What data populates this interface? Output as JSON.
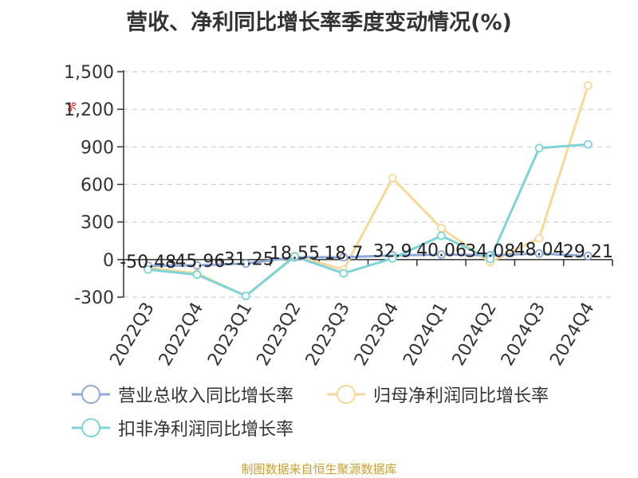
{
  "title": "营收、净利同比增长率季度变动情况(%)",
  "source": "制图数据来自恒生聚源数据库",
  "unit_label": "%",
  "colors": {
    "revenue": "#8ea9d8",
    "net_profit": "#f8d89a",
    "deducted_net_profit": "#7fd3d6"
  },
  "chart_data": {
    "type": "line",
    "title": "营收、净利同比增长率季度变动情况(%)",
    "ylabel": "%",
    "xlabel": "",
    "ylim": [
      -300,
      1500
    ],
    "yticks": [
      -300,
      0,
      300,
      600,
      900,
      1200,
      1500
    ],
    "ytick_labels": [
      "-300",
      "0",
      "300",
      "600",
      "900",
      "1,200",
      "1,500"
    ],
    "grid": true,
    "legend_position": "bottom",
    "categories": [
      "2022Q3",
      "2022Q4",
      "2023Q1",
      "2023Q2",
      "2023Q3",
      "2023Q4",
      "2024Q1",
      "2024Q2",
      "2024Q3",
      "2024Q4"
    ],
    "series": [
      {
        "name": "营业总收入同比增长率",
        "values": [
          -50.48,
          -45.96,
          -31.25,
          18.55,
          18.7,
          32.9,
          40.06,
          34.08,
          48.04,
          29.21
        ],
        "data_labels": [
          "-50.48",
          "-45.96",
          "-31.25",
          "18.55",
          "18.7",
          "32.9",
          "40.06",
          "34.08",
          "48.04",
          "29.21"
        ]
      },
      {
        "name": "归母净利润同比增长率",
        "values": [
          -65,
          -110,
          -290,
          30,
          -80,
          650,
          250,
          -20,
          170,
          1390
        ]
      },
      {
        "name": "扣非净利润同比增长率",
        "values": [
          -80,
          -120,
          -290,
          25,
          -110,
          10,
          190,
          5,
          890,
          920
        ]
      }
    ]
  }
}
